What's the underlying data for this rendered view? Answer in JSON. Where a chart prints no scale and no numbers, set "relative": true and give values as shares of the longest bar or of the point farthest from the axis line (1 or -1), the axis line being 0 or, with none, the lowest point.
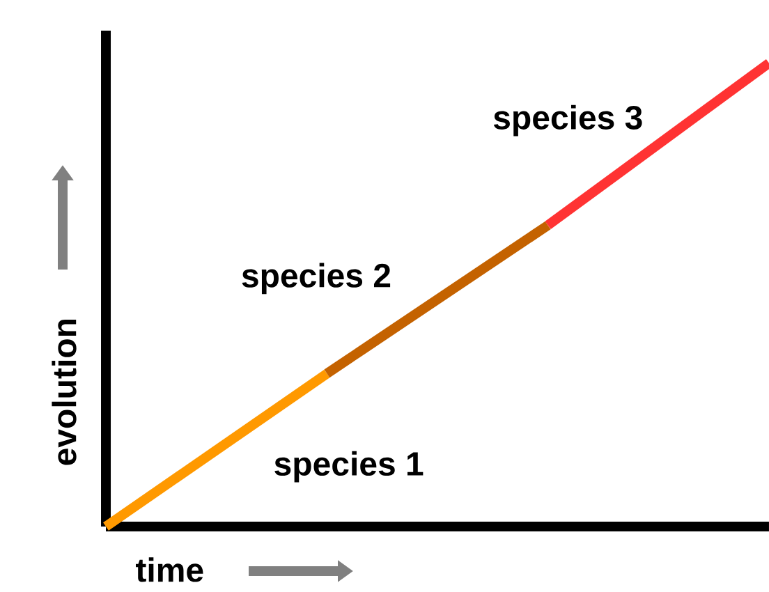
{
  "chart_data": {
    "type": "line",
    "relative": true,
    "xlabel": "time",
    "ylabel": "evolution",
    "categories": [
      null,
      null,
      null,
      null
    ],
    "series": [
      {
        "name": "species 1",
        "color": "#ff9900",
        "values": [
          0,
          0.33,
          null,
          null
        ]
      },
      {
        "name": "species 2",
        "color": "#c46200",
        "values": [
          null,
          0.33,
          0.65,
          null
        ]
      },
      {
        "name": "species 3",
        "color": "#ff3333",
        "values": [
          null,
          null,
          0.65,
          1
        ]
      }
    ]
  }
}
